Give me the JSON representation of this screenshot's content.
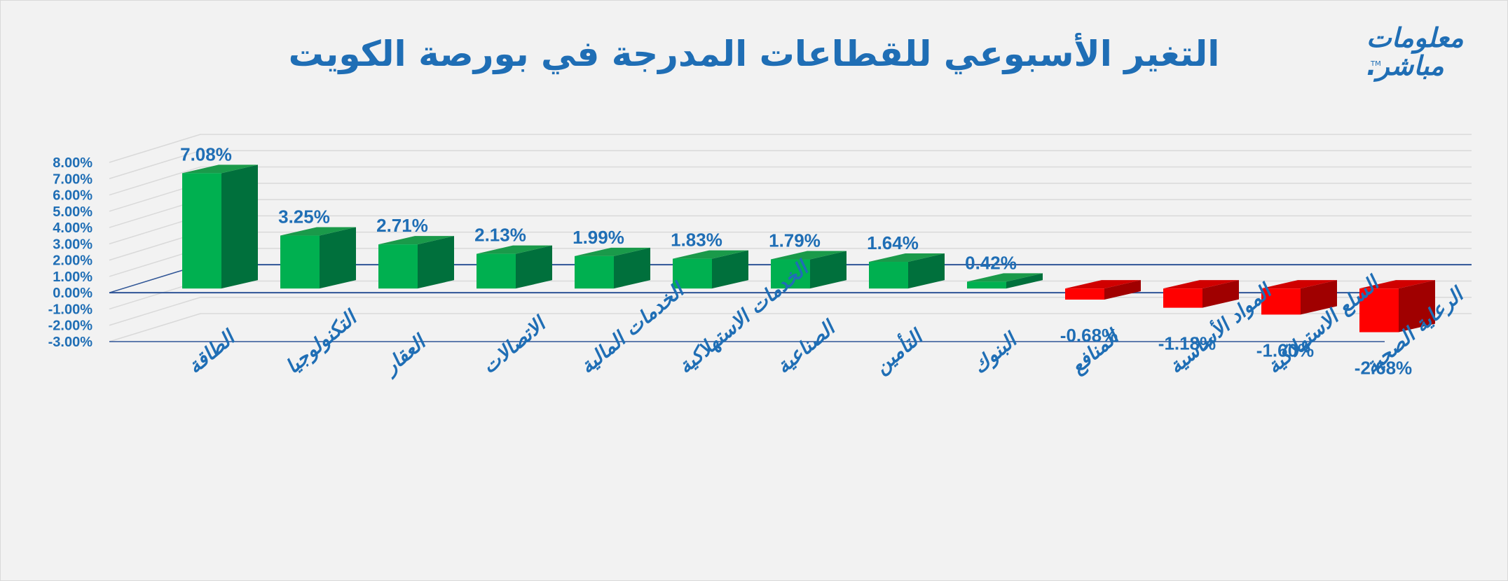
{
  "title": "التغير الأسبوعي للقطاعات المدرجة في بورصة الكويت",
  "logo": {
    "line1": "معلومات",
    "line2": "مباشر.",
    "tm": "TM"
  },
  "colors": {
    "positive_front": "#00b050",
    "positive_side": "#00703c",
    "positive_top": "#1a9a4a",
    "negative_front": "#ff0000",
    "negative_side": "#a00000",
    "negative_top": "#d00000",
    "text": "#1f6eb5",
    "grid": "#d9d9d9",
    "axis": "#2f5597"
  },
  "chart_data": {
    "type": "bar",
    "title": "التغير الأسبوعي للقطاعات المدرجة في بورصة الكويت",
    "categories": [
      "الطاقة",
      "التكنولوجيا",
      "العقار",
      "الاتصالات",
      "الخدمات المالية",
      "الخدمات الاستهلاكية",
      "الصناعية",
      "التأمين",
      "البنوك",
      "المنافع",
      "المواد الأساسية",
      "السلع الاستهلاكية",
      "الرعاية الصحية"
    ],
    "values": [
      7.08,
      3.25,
      2.71,
      2.13,
      1.99,
      1.83,
      1.79,
      1.64,
      0.42,
      -0.68,
      -1.18,
      -1.6,
      -2.68
    ],
    "data_labels": [
      "7.08%",
      "3.25%",
      "2.71%",
      "2.13%",
      "1.99%",
      "1.83%",
      "1.79%",
      "1.64%",
      "0.42%",
      "-0.68%",
      "-1.18%",
      "-1.60%",
      "-2.68%"
    ],
    "ylim": [
      -3,
      8
    ],
    "yticks": [
      "8.00%",
      "7.00%",
      "6.00%",
      "5.00%",
      "4.00%",
      "3.00%",
      "2.00%",
      "1.00%",
      "0.00%",
      "-1.00%",
      "-2.00%",
      "-3.00%"
    ],
    "xlabel": "",
    "ylabel": "",
    "grid": true,
    "style": "3d-column"
  }
}
